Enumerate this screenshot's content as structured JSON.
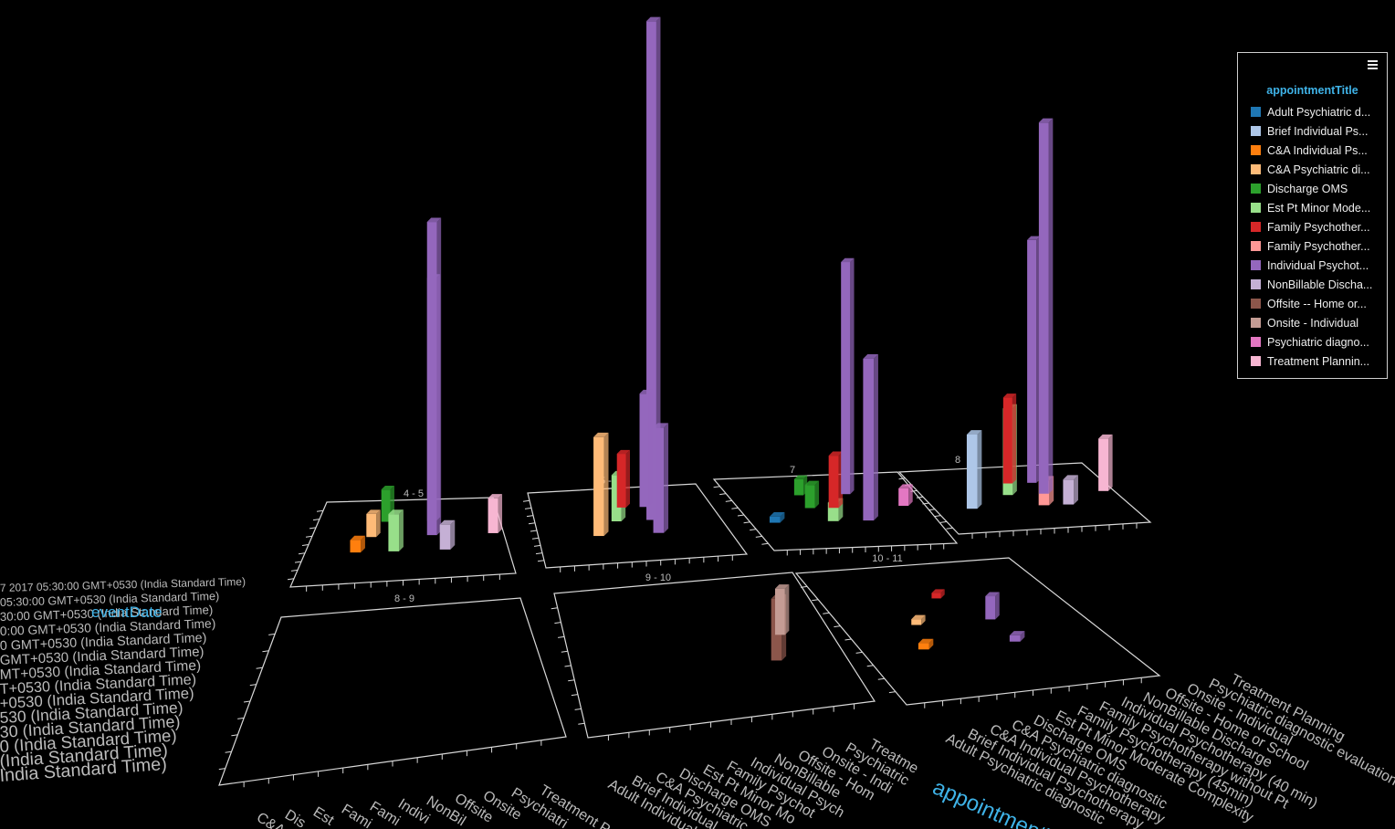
{
  "chart_data": {
    "type": "bar",
    "x_field": "eventDate",
    "color_field": "appointmentTitle",
    "panels": [
      {
        "label": "4 - 5"
      },
      {
        "label": "5 - 6"
      },
      {
        "label": "7"
      },
      {
        "label": "8"
      },
      {
        "label": "8 - 9"
      },
      {
        "label": "9 - 10"
      },
      {
        "label": "10 - 11"
      }
    ],
    "series": [
      {
        "name": "Adult Psychiatric d...",
        "color": "#1f77b4"
      },
      {
        "name": "Brief Individual Ps...",
        "color": "#aec7e8"
      },
      {
        "name": "C&A Individual Ps...",
        "color": "#ff7f0e"
      },
      {
        "name": "C&A Psychiatric di...",
        "color": "#ffbb78"
      },
      {
        "name": "Discharge OMS",
        "color": "#2ca02c"
      },
      {
        "name": "Est Pt Minor Mode...",
        "color": "#98df8a"
      },
      {
        "name": "Family Psychother...",
        "color": "#d62728"
      },
      {
        "name": "Family Psychother...",
        "color": "#ff9896"
      },
      {
        "name": "Individual Psychot...",
        "color": "#9467bd"
      },
      {
        "name": "NonBillable Discha...",
        "color": "#c5b0d5"
      },
      {
        "name": "Offsite -- Home or...",
        "color": "#8c564b"
      },
      {
        "name": "Onsite - Individual",
        "color": "#c49c94"
      },
      {
        "name": "Psychiatric diagno...",
        "color": "#e377c2"
      },
      {
        "name": "Treatment Plannin...",
        "color": "#f7b6d2"
      }
    ],
    "bars": [
      {
        "panel": 0,
        "series": 2,
        "value": 2
      },
      {
        "panel": 0,
        "series": 3,
        "value": 4
      },
      {
        "panel": 0,
        "series": 4,
        "value": 6
      },
      {
        "panel": 0,
        "series": 5,
        "value": 6
      },
      {
        "panel": 0,
        "series": 8,
        "value": 54
      },
      {
        "panel": 0,
        "series": 8,
        "value": 45
      },
      {
        "panel": 0,
        "series": 9,
        "value": 4
      },
      {
        "panel": 0,
        "series": 13,
        "value": 6
      },
      {
        "panel": 1,
        "series": 3,
        "value": 16
      },
      {
        "panel": 1,
        "series": 5,
        "value": 8
      },
      {
        "panel": 1,
        "series": 6,
        "value": 10
      },
      {
        "panel": 1,
        "series": 8,
        "value": 17
      },
      {
        "panel": 1,
        "series": 8,
        "value": 86
      },
      {
        "panel": 1,
        "series": 8,
        "value": 21
      },
      {
        "panel": 2,
        "series": 0,
        "value": 1
      },
      {
        "panel": 2,
        "series": 4,
        "value": 4
      },
      {
        "panel": 2,
        "series": 4,
        "value": 3
      },
      {
        "panel": 2,
        "series": 5,
        "value": 3
      },
      {
        "panel": 2,
        "series": 6,
        "value": 9
      },
      {
        "panel": 2,
        "series": 8,
        "value": 43
      },
      {
        "panel": 2,
        "series": 8,
        "value": 26
      },
      {
        "panel": 2,
        "series": 12,
        "value": 3
      },
      {
        "panel": 3,
        "series": 1,
        "value": 12
      },
      {
        "panel": 3,
        "series": 5,
        "value": 15
      },
      {
        "panel": 3,
        "series": 6,
        "value": 16
      },
      {
        "panel": 3,
        "series": 7,
        "value": 4
      },
      {
        "panel": 3,
        "series": 8,
        "value": 64
      },
      {
        "panel": 3,
        "series": 8,
        "value": 45
      },
      {
        "panel": 3,
        "series": 9,
        "value": 4
      },
      {
        "panel": 3,
        "series": 13,
        "value": 9
      },
      {
        "panel": 5,
        "series": 10,
        "value": 10
      },
      {
        "panel": 5,
        "series": 11,
        "value": 8
      },
      {
        "panel": 6,
        "series": 2,
        "value": 1
      },
      {
        "panel": 6,
        "series": 3,
        "value": 1
      },
      {
        "panel": 6,
        "series": 6,
        "value": 1
      },
      {
        "panel": 6,
        "series": 8,
        "value": 1
      },
      {
        "panel": 6,
        "series": 8,
        "value": 4
      }
    ],
    "y_axis_tick_labels": [
      "7 2017 05:30:00 GMT+0530 (India Standard Time)",
      "05:30:00 GMT+0530 (India Standard Time)",
      "30:00 GMT+0530 (India Standard Time)",
      "0:00 GMT+0530 (India Standard Time)",
      "0 GMT+0530 (India Standard Time)",
      "GMT+0530 (India Standard Time)",
      "MT+0530 (India Standard Time)",
      "T+0530 (India Standard Time)",
      "+0530 (India Standard Time)",
      "530 (India Standard Time)",
      "30 (India Standard Time)",
      "0 (India Standard Time)",
      "(India Standard Time)",
      "India Standard Time)"
    ],
    "x_axis_tick_labels": [
      "Adult Psychiatric diagnostic",
      "Brief Individual Psychotherapy",
      "C&A Individual Psychotherapy",
      "C&A Psychiatric diagnostic",
      "Discharge OMS",
      "Est Pt Minor Moderate Complexity",
      "Family Psychotherapy (45min)",
      "Family Psychotherapy without Pt",
      "Individual Psychotherapy (40 min)",
      "NonBillable Discharge",
      "Offsite - Home or School",
      "Onsite - Individual",
      "Psychiatric diagnostic evaluation with",
      "Treatment Planning"
    ],
    "front_x_axis_labels": [
      "Adult Individual",
      "Brief Individual",
      "C&A Psychiatric",
      "Discharge OMS",
      "Est Pt Minor Mo",
      "Family Psychot",
      "Individual Psych",
      "NonBillable",
      "Offsite - Hom",
      "Onsite - Indi",
      "Psychiatric",
      "Treatme"
    ],
    "left_axis_labels": [
      "C&A",
      "Dis",
      "Est",
      "Fami",
      "Fami",
      "Indivi",
      "NonBil",
      "Offsite",
      "Onsite",
      "Psychiatri",
      "Treatment P"
    ],
    "x_axis_title": "appointmentTitle",
    "y_axis_title": "eventDate",
    "legend_title": "appointmentTitle",
    "legend_position": "top-right",
    "grid": false
  },
  "colors": {
    "background": "#000000",
    "axis_title": "#3fb3e8",
    "axis_line": "#d8d8d8",
    "axis_label": "#bbbbbb"
  },
  "icons": {
    "legend_menu": "hamburger-menu-icon"
  }
}
